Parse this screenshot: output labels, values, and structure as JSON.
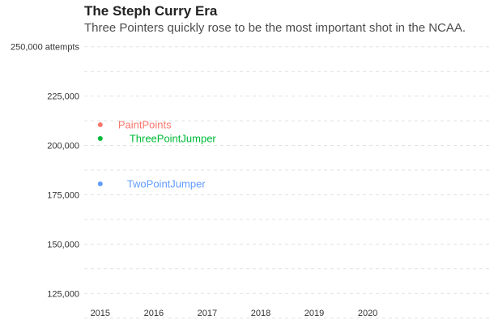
{
  "chart_data": {
    "type": "scatter",
    "title": "The Steph Curry Era",
    "subtitle": "Three Pointers quickly rose to be the most important shot in the NCAA.",
    "xlabel": "",
    "ylabel": "",
    "x_ticks": [
      "2015",
      "2016",
      "2017",
      "2018",
      "2019",
      "2020"
    ],
    "y_ticks": [
      {
        "value": 125000,
        "label": "125,000"
      },
      {
        "value": 150000,
        "label": "150,000"
      },
      {
        "value": 175000,
        "label": "175,000"
      },
      {
        "value": 200000,
        "label": "200,000"
      },
      {
        "value": 225000,
        "label": "225,000"
      },
      {
        "value": 250000,
        "label": "250,000 attempts"
      }
    ],
    "xlim": [
      2014.7,
      2022.3
    ],
    "ylim": [
      121000,
      254000
    ],
    "grid": true,
    "legend": "direct labels",
    "series": [
      {
        "name": "PaintPoints",
        "color": "#F8766D",
        "points": [
          {
            "x": 2015,
            "y": 210500
          }
        ]
      },
      {
        "name": "ThreePointJumper",
        "color": "#00BA38",
        "points": [
          {
            "x": 2015,
            "y": 203500
          }
        ]
      },
      {
        "name": "TwoPointJumper",
        "color": "#619CFF",
        "points": [
          {
            "x": 2015,
            "y": 180500
          }
        ]
      }
    ]
  }
}
